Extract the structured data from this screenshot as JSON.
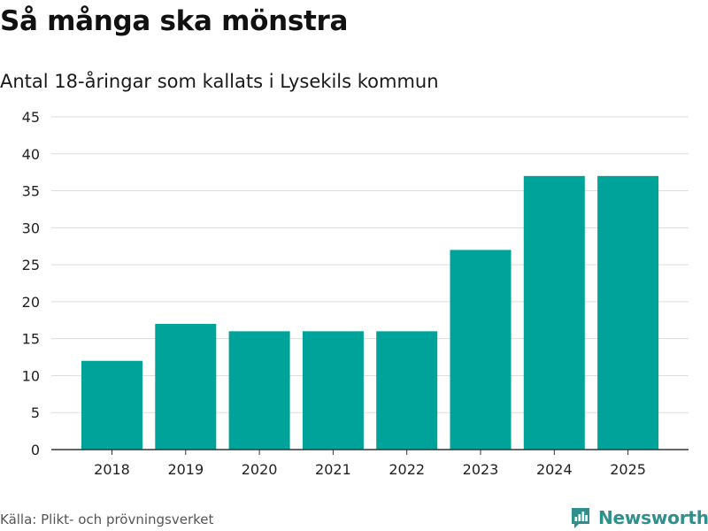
{
  "header": {
    "title": "Så många ska mönstra",
    "subtitle": "Antal 18-åringar som kallats i Lysekils kommun"
  },
  "footer": {
    "source": "Källa: Plikt- och prövningsverket",
    "brand": "Newsworthy",
    "brand_icon": "newsworthy-logo-icon"
  },
  "colors": {
    "bar": "#00a39a",
    "grid": "#dddddd",
    "axis": "#333333",
    "brand": "#2f8f8c"
  },
  "chart_data": {
    "type": "bar",
    "title": "Så många ska mönstra",
    "subtitle": "Antal 18-åringar som kallats i Lysekils kommun",
    "xlabel": "",
    "ylabel": "",
    "categories": [
      "2018",
      "2019",
      "2020",
      "2021",
      "2022",
      "2023",
      "2024",
      "2025"
    ],
    "values": [
      12,
      17,
      16,
      16,
      16,
      27,
      37,
      37
    ],
    "ylim": [
      0,
      45
    ],
    "yticks": [
      0,
      5,
      10,
      15,
      20,
      25,
      30,
      35,
      40,
      45
    ],
    "grid": true,
    "legend": "none"
  }
}
